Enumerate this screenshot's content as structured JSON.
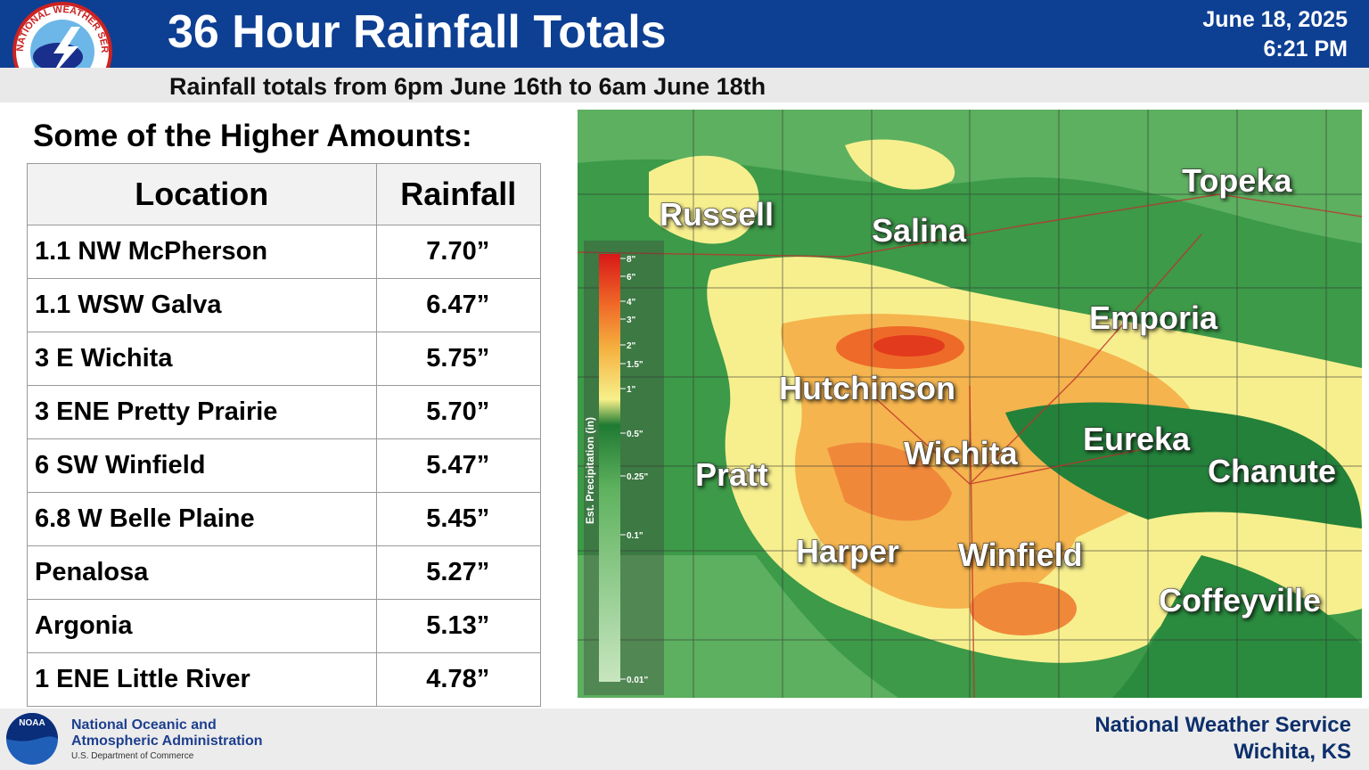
{
  "header": {
    "title": "36 Hour Rainfall Totals",
    "subtitle": "Rainfall totals from 6pm June 16th to 6am June 18th",
    "date": "June 18, 2025",
    "time": "6:21 PM",
    "logo_text": "NATIONAL WEATHER SERVICE"
  },
  "table": {
    "heading": "Some of the Higher Amounts:",
    "columns": [
      "Location",
      "Rainfall"
    ],
    "rows": [
      [
        "1.1 NW McPherson",
        "7.70”"
      ],
      [
        "1.1 WSW Galva",
        "6.47”"
      ],
      [
        "3 E Wichita",
        "5.75”"
      ],
      [
        "3 ENE Pretty Prairie",
        "5.70”"
      ],
      [
        "6 SW Winfield",
        "5.47”"
      ],
      [
        "6.8 W Belle Plaine",
        "5.45”"
      ],
      [
        "Penalosa",
        "5.27”"
      ],
      [
        "Argonia",
        "5.13”"
      ],
      [
        "1 ENE Little River",
        "4.78”"
      ]
    ]
  },
  "map": {
    "labels": [
      "Russell",
      "Salina",
      "Topeka",
      "Emporia",
      "Hutchinson",
      "Wichita",
      "Eureka",
      "Chanute",
      "Pratt",
      "Harper",
      "Winfield",
      "Coffeyville"
    ],
    "legend": {
      "title": "Est. Precipitation (in)",
      "ticks": [
        "8\"",
        "6\"",
        "4\"",
        "3\"",
        "2\"",
        "1.5\"",
        "1\"",
        "0.5\"",
        "0.25\"",
        "0.1\"",
        "0.01\""
      ]
    }
  },
  "footer": {
    "noaa_logo": "NOAA",
    "agency_line1": "National Oceanic and",
    "agency_line2": "Atmospheric Administration",
    "department": "U.S. Department of Commerce",
    "office_line1": "National Weather Service",
    "office_line2": "Wichita, KS"
  }
}
